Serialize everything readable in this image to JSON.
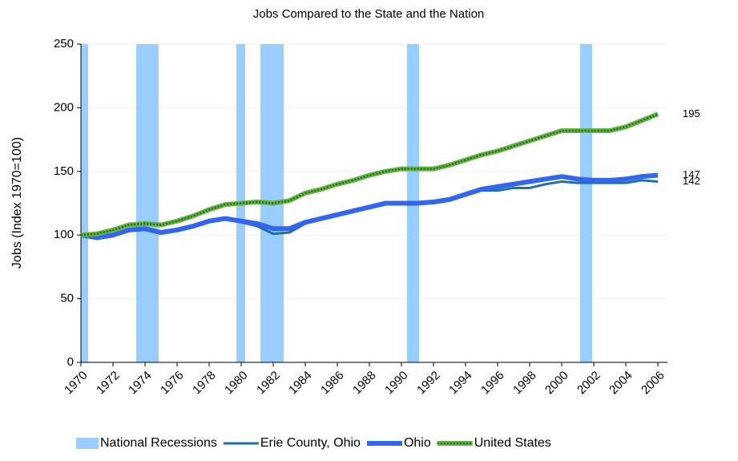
{
  "chart_data": {
    "type": "line",
    "title": "Jobs Compared to the State and the Nation",
    "y_label": "Jobs (Index 1970=100)",
    "x": [
      1970,
      1971,
      1972,
      1973,
      1974,
      1975,
      1976,
      1977,
      1978,
      1979,
      1980,
      1981,
      1982,
      1983,
      1984,
      1985,
      1986,
      1987,
      1988,
      1989,
      1990,
      1991,
      1992,
      1993,
      1994,
      1995,
      1996,
      1997,
      1998,
      1999,
      2000,
      2001,
      2002,
      2003,
      2004,
      2005,
      2006
    ],
    "bands": {
      "name": "National Recessions",
      "color": "#99ccff",
      "ranges": [
        [
          1970,
          1970.45
        ],
        [
          1973.45,
          1974.85
        ],
        [
          1979.7,
          1980.25
        ],
        [
          1981.2,
          1982.65
        ],
        [
          1990.35,
          1991.1
        ],
        [
          2001.15,
          2001.9
        ]
      ]
    },
    "series": [
      {
        "name": "Erie County, Ohio",
        "color": "#1f6fa8",
        "width": 3,
        "values": [
          100,
          97,
          99,
          104,
          105,
          102,
          104,
          107,
          111,
          113,
          110,
          107,
          101,
          102,
          109,
          113,
          116,
          119,
          121,
          124,
          125,
          125,
          125,
          127,
          131,
          135,
          135,
          137,
          137,
          140,
          142,
          141,
          141,
          141,
          141,
          143,
          142
        ]
      },
      {
        "name": "Ohio",
        "color": "#3366ee",
        "width": 6,
        "values": [
          100,
          98,
          100,
          104,
          105,
          102,
          104,
          107,
          111,
          113,
          111,
          109,
          105,
          105,
          110,
          113,
          116,
          119,
          122,
          125,
          125,
          125,
          126,
          128,
          132,
          136,
          138,
          140,
          142,
          144,
          146,
          144,
          143,
          143,
          144,
          146,
          147
        ]
      },
      {
        "name": "United States",
        "color": "#66b344",
        "width": 6,
        "pattern": true,
        "values": [
          100,
          101,
          104,
          108,
          109,
          108,
          111,
          115,
          120,
          124,
          125,
          126,
          125,
          127,
          133,
          136,
          140,
          143,
          147,
          150,
          152,
          152,
          152,
          155,
          159,
          163,
          166,
          170,
          174,
          178,
          182,
          182,
          182,
          182,
          185,
          190,
          195
        ]
      }
    ],
    "xlim": [
      1970,
      2006.6
    ],
    "xticks": [
      1970,
      1972,
      1974,
      1976,
      1978,
      1980,
      1982,
      1984,
      1986,
      1988,
      1990,
      1992,
      1994,
      1996,
      1998,
      2000,
      2002,
      2004,
      2006
    ],
    "ylim": [
      0,
      250
    ],
    "yticks": [
      0,
      50,
      100,
      150,
      200,
      250
    ],
    "grid": true
  }
}
